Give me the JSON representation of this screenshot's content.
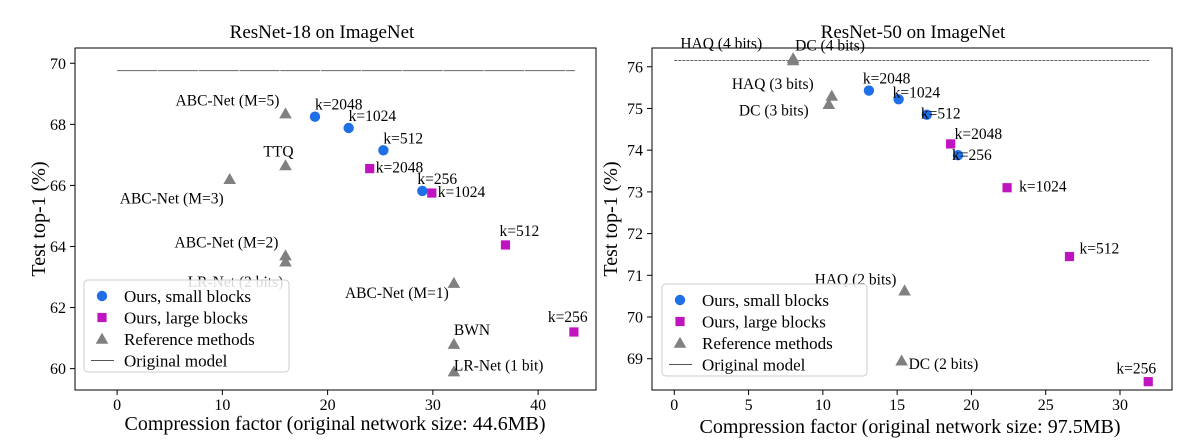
{
  "chart_data": [
    {
      "type": "scatter",
      "title": "ResNet-18 on ImageNet",
      "xlabel": "Compression factor (original network size: 44.6MB)",
      "ylabel": "Test top-1 (%)",
      "xlim": [
        -4,
        45.5
      ],
      "ylim": [
        59.3,
        70.5
      ],
      "xticks": [
        0,
        10,
        20,
        30,
        40
      ],
      "yticks": [
        60,
        62,
        64,
        66,
        68,
        70
      ],
      "legend_position": "lower-left",
      "reference_line": {
        "y": 69.76,
        "x": [
          0,
          43.5
        ]
      },
      "series": [
        {
          "name": "Ours, small blocks",
          "marker": "circle",
          "color": "#1f6fe6",
          "points": [
            {
              "x": 18.8,
              "y": 68.25,
              "label": "k=2048"
            },
            {
              "x": 22.0,
              "y": 67.88,
              "label": "k=1024"
            },
            {
              "x": 25.3,
              "y": 67.15,
              "label": "k=512"
            },
            {
              "x": 29.0,
              "y": 65.82,
              "label": "k=256"
            }
          ]
        },
        {
          "name": "Ours, large blocks",
          "marker": "square",
          "color": "#bf14bf",
          "points": [
            {
              "x": 24.0,
              "y": 66.55,
              "label": "k=2048"
            },
            {
              "x": 29.9,
              "y": 65.75,
              "label": "k=1024"
            },
            {
              "x": 36.9,
              "y": 64.05,
              "label": "k=512"
            },
            {
              "x": 43.4,
              "y": 61.2,
              "label": "k=256"
            }
          ]
        },
        {
          "name": "Reference methods",
          "marker": "triangle",
          "color": "#808080",
          "points": [
            {
              "x": 16.0,
              "y": 68.35,
              "label": "ABC-Net (M=5)"
            },
            {
              "x": 16.0,
              "y": 66.65,
              "label": "TTQ"
            },
            {
              "x": 10.7,
              "y": 66.2,
              "label": "ABC-Net (M=3)"
            },
            {
              "x": 16.0,
              "y": 63.7,
              "label": "ABC-Net (M=2)"
            },
            {
              "x": 16.0,
              "y": 63.5,
              "label": "LR-Net (2 bits)"
            },
            {
              "x": 32.0,
              "y": 62.8,
              "label": "ABC-Net (M=1)"
            },
            {
              "x": 32.0,
              "y": 60.8,
              "label": "BWN"
            },
            {
              "x": 32.0,
              "y": 59.9,
              "label": "LR-Net (1 bit)"
            }
          ]
        }
      ],
      "legend": [
        {
          "marker": "circle",
          "label": "Ours, small blocks"
        },
        {
          "marker": "square",
          "label": "Ours, large blocks"
        },
        {
          "marker": "triangle",
          "label": "Reference methods"
        },
        {
          "marker": "line",
          "label": "Original model"
        }
      ]
    },
    {
      "type": "scatter",
      "title": "ResNet-50 on ImageNet",
      "xlabel": "Compression factor (original network size: 97.5MB)",
      "ylabel": "Test top-1 (%)",
      "xlim": [
        -1.5,
        33.5
      ],
      "ylim": [
        68.25,
        76.45
      ],
      "xticks": [
        0,
        5,
        10,
        15,
        20,
        25,
        30
      ],
      "yticks": [
        69,
        70,
        71,
        72,
        73,
        74,
        75,
        76
      ],
      "legend_position": "lower-left",
      "reference_line": {
        "y": 76.15,
        "x": [
          0,
          32
        ]
      },
      "series": [
        {
          "name": "Ours, small blocks",
          "marker": "circle",
          "color": "#1f6fe6",
          "points": [
            {
              "x": 13.1,
              "y": 75.43,
              "label": "k=2048"
            },
            {
              "x": 15.1,
              "y": 75.22,
              "label": "k=1024"
            },
            {
              "x": 17.0,
              "y": 74.85,
              "label": "k=512"
            },
            {
              "x": 19.1,
              "y": 73.88,
              "label": "k=256"
            }
          ]
        },
        {
          "name": "Ours, large blocks",
          "marker": "square",
          "color": "#bf14bf",
          "points": [
            {
              "x": 18.6,
              "y": 74.15,
              "label": "k=2048"
            },
            {
              "x": 22.4,
              "y": 73.1,
              "label": "k=1024"
            },
            {
              "x": 26.6,
              "y": 71.45,
              "label": "k=512"
            },
            {
              "x": 31.9,
              "y": 68.45,
              "label": "k=256"
            }
          ]
        },
        {
          "name": "Reference methods",
          "marker": "triangle",
          "color": "#808080",
          "points": [
            {
              "x": 8.0,
              "y": 76.2,
              "label": "HAQ (4 bits)"
            },
            {
              "x": 8.0,
              "y": 76.15,
              "label": "DC (4 bits)"
            },
            {
              "x": 10.6,
              "y": 75.3,
              "label": "HAQ (3 bits)"
            },
            {
              "x": 10.4,
              "y": 75.1,
              "label": "DC (3 bits)"
            },
            {
              "x": 15.5,
              "y": 70.63,
              "label": "HAQ (2 bits)"
            },
            {
              "x": 15.3,
              "y": 68.95,
              "label": "DC (2 bits)"
            }
          ]
        }
      ],
      "legend": [
        {
          "marker": "circle",
          "label": "Ours, small blocks"
        },
        {
          "marker": "square",
          "label": "Ours, large blocks"
        },
        {
          "marker": "triangle",
          "label": "Reference methods"
        },
        {
          "marker": "line",
          "label": "Original model"
        }
      ]
    }
  ]
}
